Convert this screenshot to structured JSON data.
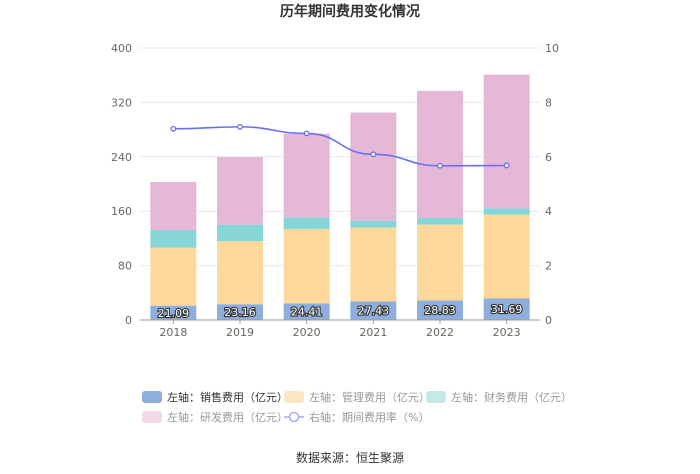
{
  "chart_data": {
    "type": "bar",
    "title": "历年期间费用变化情况",
    "categories": [
      "2018",
      "2019",
      "2020",
      "2021",
      "2022",
      "2023"
    ],
    "left_axis": {
      "ylim": [
        0,
        400
      ],
      "ticks": [
        "0",
        "80",
        "160",
        "240",
        "320",
        "400"
      ]
    },
    "right_axis": {
      "ylim": [
        0,
        10
      ],
      "ticks": [
        "0",
        "2",
        "4",
        "6",
        "8",
        "10"
      ]
    },
    "grid": true,
    "legend_position": "bottom",
    "series": [
      {
        "name": "左轴：销售费用（亿元）",
        "type": "bar",
        "stack": true,
        "color": "#8eaedd",
        "values": [
          21.09,
          23.16,
          24.41,
          27.43,
          28.83,
          31.69
        ],
        "labels": [
          "21.09",
          "23.16",
          "24.41",
          "27.43",
          "28.83",
          "31.69"
        ]
      },
      {
        "name": "左轴：管理费用（亿元）",
        "type": "bar",
        "stack": true,
        "color": "#fdd89a",
        "values": [
          85.2,
          92.8,
          109.4,
          108.4,
          111.4,
          123.2
        ]
      },
      {
        "name": "左轴：财务费用（亿元）",
        "type": "bar",
        "stack": true,
        "color": "#86d5d7",
        "values": [
          26.1,
          24.2,
          17.2,
          10.2,
          9.8,
          9.3
        ]
      },
      {
        "name": "左轴：研发费用（亿元）",
        "type": "bar",
        "stack": true,
        "color": "#e6b8d8",
        "values": [
          70.6,
          99.5,
          123.0,
          159.0,
          186.8,
          196.6
        ]
      },
      {
        "name": "右轴：期间费用率（%）",
        "type": "line",
        "axis": "right",
        "color": "#6a6ef5",
        "values": [
          7.03,
          7.1,
          6.86,
          6.09,
          5.67,
          5.68
        ]
      }
    ],
    "source": "数据来源：恒生聚源"
  }
}
